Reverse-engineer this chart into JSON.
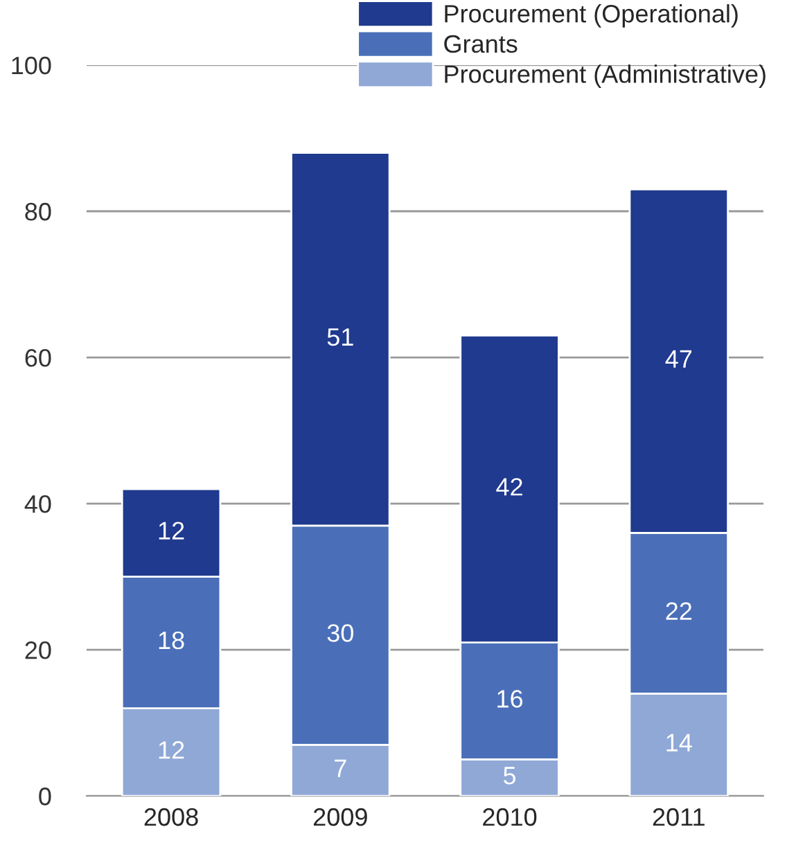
{
  "chart_data": {
    "type": "bar",
    "stacked": true,
    "categories": [
      "2008",
      "2009",
      "2010",
      "2011"
    ],
    "series": [
      {
        "name": "Procurement (Administrative)",
        "color": "#8fa8d6",
        "values": [
          12,
          7,
          5,
          14
        ]
      },
      {
        "name": "Grants",
        "color": "#4a6fb8",
        "values": [
          18,
          30,
          16,
          22
        ]
      },
      {
        "name": "Procurement (Operational)",
        "color": "#1f3a8e",
        "values": [
          12,
          51,
          42,
          47
        ]
      }
    ],
    "ylim": [
      0,
      100
    ],
    "yticks": [
      0,
      20,
      40,
      60,
      80,
      100
    ],
    "grid": "y",
    "legend": "top right",
    "data_labels": true
  }
}
